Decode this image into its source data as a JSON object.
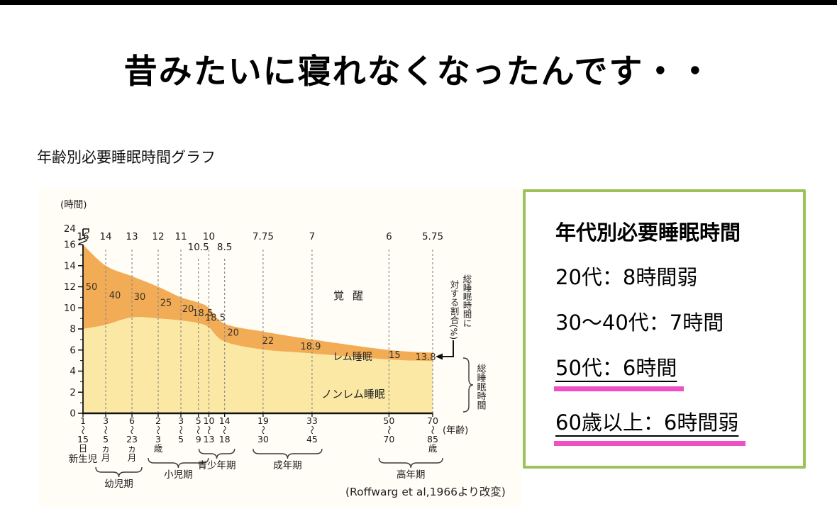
{
  "slide": {
    "title": "昔みたいに寝れなくなったんです・・",
    "graph_label": "年齢別必要睡眠時間グラフ"
  },
  "info_box": {
    "title": "年代別必要睡眠時間",
    "border_color": "#9dc258",
    "underline_color": "#ee4fc5",
    "lines": [
      {
        "text": "20代：8時間弱",
        "underlined": false
      },
      {
        "text": "30〜40代：7時間",
        "underlined": false
      },
      {
        "text": "50代：6時間",
        "underlined": true
      },
      {
        "text": "60歳以上：6時間弱",
        "underlined": true
      }
    ]
  },
  "chart_data": {
    "type": "area",
    "ylabel": "(時間)",
    "xlabel": "(年齢)",
    "ylim": [
      0,
      24
    ],
    "y_ticks": [
      0,
      2,
      4,
      6,
      8,
      10,
      12,
      14,
      16,
      24
    ],
    "y_axis_break_between": [
      16,
      24
    ],
    "grid": "vertical-dashed",
    "legend_position": "inline-region-labels",
    "region_labels": {
      "wake": "覚醒",
      "rem": "レム睡眠",
      "nonrem": "ノンレム睡眠"
    },
    "annotation_rem_pct": "総睡眠時間に対する割合(%)",
    "annotation_total_sleep": "総睡眠時間",
    "citation": "(Roffwarg et al,1966より改変)",
    "columns": [
      {
        "age": "1〜15日",
        "total_sleep_h": 16,
        "rem_pct": 50,
        "x_frac": 0.0
      },
      {
        "age": "3〜5ヵ月",
        "total_sleep_h": 14,
        "rem_pct": 40,
        "x_frac": 0.065
      },
      {
        "age": "6〜23ヵ月",
        "total_sleep_h": 13,
        "rem_pct": 30,
        "x_frac": 0.14
      },
      {
        "age": "2〜3歳",
        "total_sleep_h": 12,
        "rem_pct": 25,
        "x_frac": 0.215
      },
      {
        "age": "3〜5",
        "total_sleep_h": 11,
        "rem_pct": 20,
        "x_frac": 0.28
      },
      {
        "age": "5〜9",
        "total_sleep_h": 10.5,
        "rem_pct": 18.5,
        "x_frac": 0.33,
        "label_offset": "low"
      },
      {
        "age": "10〜13",
        "total_sleep_h": 10,
        "rem_pct": 18.5,
        "x_frac": 0.36
      },
      {
        "age": "14〜18",
        "total_sleep_h": 8.5,
        "rem_pct": 20,
        "x_frac": 0.405,
        "label_offset": "low"
      },
      {
        "age": "19〜30",
        "total_sleep_h": 7.75,
        "rem_pct": 22,
        "x_frac": 0.515
      },
      {
        "age": "33〜45",
        "total_sleep_h": 7,
        "rem_pct": 18.9,
        "x_frac": 0.655
      },
      {
        "age": "50〜70",
        "total_sleep_h": 6,
        "rem_pct": 15,
        "x_frac": 0.875
      },
      {
        "age": "70〜85歳",
        "total_sleep_h": 5.75,
        "rem_pct": 13.8,
        "x_frac": 1.0
      }
    ],
    "stage_groups": [
      {
        "label": "新生児",
        "from": 0,
        "to": 0,
        "brace": false
      },
      {
        "label": "幼児期",
        "from": 1,
        "to": 2,
        "brace": true
      },
      {
        "label": "小児期",
        "from": 3,
        "to": 5,
        "brace": true
      },
      {
        "label": "青少年期",
        "from": 6,
        "to": 7,
        "brace": true
      },
      {
        "label": "成年期",
        "from": 8,
        "to": 9,
        "brace": true
      },
      {
        "label": "高年期",
        "from": 10,
        "to": 11,
        "brace": true
      }
    ],
    "colors": {
      "rem_band": "#f2ac55",
      "nonrem_area": "#fbe8a5",
      "background": "#fffdf6"
    }
  }
}
